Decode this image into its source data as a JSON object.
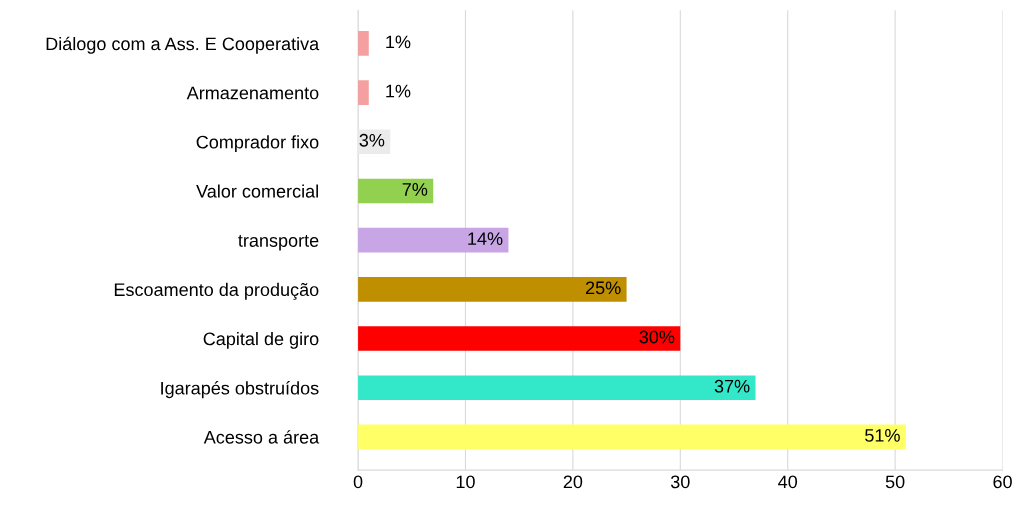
{
  "chart_data": {
    "type": "bar",
    "orientation": "horizontal",
    "categories": [
      "Diálogo com a Ass. E Cooperativa",
      "Armazenamento",
      "Comprador fixo",
      "Valor comercial",
      "transporte",
      "Escoamento da produção",
      "Capital de giro",
      "Igarapés obstruídos",
      "Acesso a área"
    ],
    "values": [
      1,
      1,
      3,
      7,
      14,
      25,
      30,
      37,
      51
    ],
    "colors": [
      "#f4a0a0",
      "#f4a0a0",
      "#ebebeb",
      "#92d050",
      "#c8a6e6",
      "#bf8f00",
      "#ff0000",
      "#33e8c8",
      "#ffff66"
    ],
    "value_labels": [
      "1%",
      "1%",
      "3%",
      "7%",
      "14%",
      "25%",
      "30%",
      "37%",
      "51%"
    ],
    "xlim": [
      0,
      60
    ],
    "xticks": [
      0,
      10,
      20,
      30,
      40,
      50,
      60
    ],
    "grid": "x",
    "legend": false
  }
}
